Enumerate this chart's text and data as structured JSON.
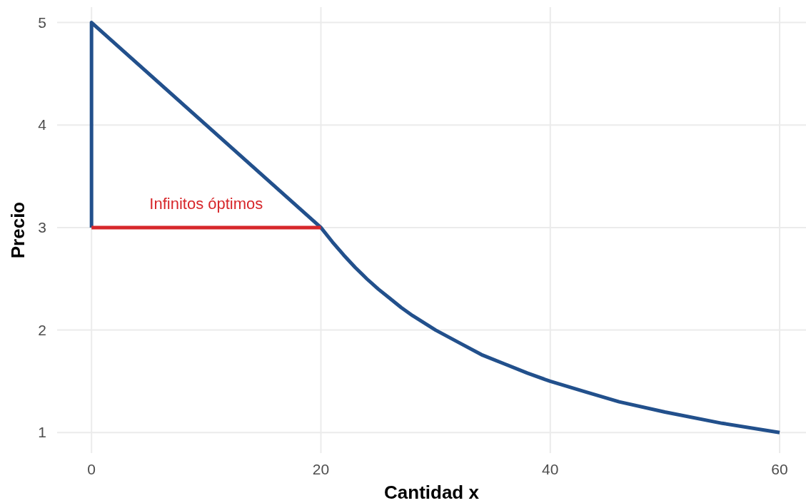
{
  "chart_data": {
    "type": "line",
    "xlabel": "Cantidad x",
    "ylabel": "Precio",
    "xlim": [
      -3,
      62.3
    ],
    "ylim": [
      0.8,
      5.15
    ],
    "xticks": [
      0,
      20,
      40,
      60
    ],
    "yticks": [
      1,
      2,
      3,
      4,
      5
    ],
    "grid": true,
    "series": [
      {
        "color": "#22508c",
        "x": [
          0,
          0,
          20,
          21,
          22,
          23,
          24,
          25,
          26,
          27,
          28,
          30,
          32,
          34,
          36,
          38,
          40,
          43,
          46,
          50,
          55,
          60
        ],
        "values": [
          3,
          5,
          3,
          2.86,
          2.73,
          2.61,
          2.5,
          2.4,
          2.31,
          2.22,
          2.14,
          2,
          1.88,
          1.76,
          1.67,
          1.58,
          1.5,
          1.4,
          1.3,
          1.2,
          1.09,
          1
        ]
      },
      {
        "color": "#d7272b",
        "x": [
          0,
          20
        ],
        "values": [
          3,
          3
        ]
      }
    ],
    "annotations": [
      "Infinitos óptimos"
    ]
  }
}
